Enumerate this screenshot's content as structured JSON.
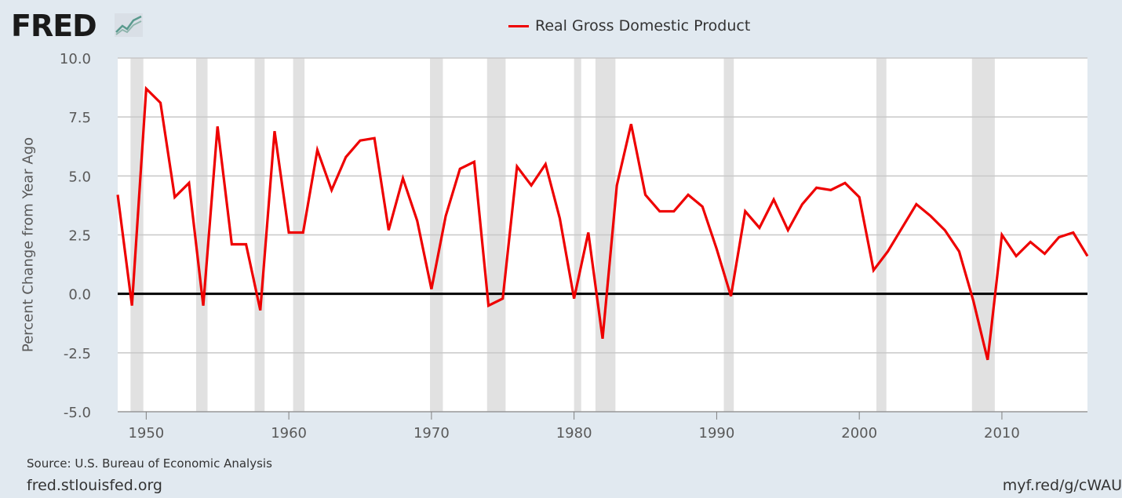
{
  "header": {
    "logo_text": "FRED",
    "logo_icon": "chart-line-icon"
  },
  "footer": {
    "source": "Source: U.S. Bureau of Economic Analysis",
    "site": "fred.stlouisfed.org",
    "short_url": "myf.red/g/cWAU"
  },
  "colors": {
    "background": "#e1e9f0",
    "plot_background": "#ffffff",
    "series": "#ee0000",
    "recession": "#e1e1e1",
    "gridline": "#c8c8c8",
    "zero_line": "#000000"
  },
  "chart_data": {
    "type": "line",
    "xlabel": "",
    "ylabel": "Percent Change from Year Ago",
    "xlim": [
      1948,
      2016
    ],
    "ylim": [
      -5,
      10
    ],
    "x_ticks": [
      1950,
      1960,
      1970,
      1980,
      1990,
      2000,
      2010
    ],
    "y_ticks": [
      "-5.0",
      "-2.5",
      "0.0",
      "2.5",
      "5.0",
      "7.5",
      "10.0"
    ],
    "y_tick_values": [
      -5,
      -2.5,
      0,
      2.5,
      5,
      7.5,
      10
    ],
    "grid": true,
    "legend": "top-center",
    "recessions": [
      [
        1948.9,
        1949.8
      ],
      [
        1953.5,
        1954.3
      ],
      [
        1957.6,
        1958.3
      ],
      [
        1960.3,
        1961.1
      ],
      [
        1969.9,
        1970.8
      ],
      [
        1973.9,
        1975.2
      ],
      [
        1980.0,
        1980.5
      ],
      [
        1981.5,
        1982.9
      ],
      [
        1990.5,
        1991.2
      ],
      [
        2001.2,
        2001.9
      ],
      [
        2007.9,
        2009.5
      ]
    ],
    "series": [
      {
        "name": "Real Gross Domestic Product",
        "x": [
          1948,
          1949,
          1950,
          1951,
          1952,
          1953,
          1954,
          1955,
          1956,
          1957,
          1958,
          1959,
          1960,
          1961,
          1962,
          1963,
          1964,
          1965,
          1966,
          1967,
          1968,
          1969,
          1970,
          1971,
          1972,
          1973,
          1974,
          1975,
          1976,
          1977,
          1978,
          1979,
          1980,
          1981,
          1982,
          1983,
          1984,
          1985,
          1986,
          1987,
          1988,
          1989,
          1990,
          1991,
          1992,
          1993,
          1994,
          1995,
          1996,
          1997,
          1998,
          1999,
          2000,
          2001,
          2002,
          2003,
          2004,
          2005,
          2006,
          2007,
          2008,
          2009,
          2010,
          2011,
          2012,
          2013,
          2014,
          2015,
          2016
        ],
        "values": [
          4.2,
          -0.5,
          8.7,
          8.1,
          4.1,
          4.7,
          -0.5,
          7.1,
          2.1,
          2.1,
          -0.7,
          6.9,
          2.6,
          2.6,
          6.1,
          4.4,
          5.8,
          6.5,
          6.6,
          2.7,
          4.9,
          3.1,
          0.2,
          3.3,
          5.3,
          5.6,
          -0.5,
          -0.2,
          5.4,
          4.6,
          5.5,
          3.2,
          -0.2,
          2.6,
          -1.9,
          4.6,
          7.2,
          4.2,
          3.5,
          3.5,
          4.2,
          3.7,
          1.9,
          -0.1,
          3.5,
          2.8,
          4.0,
          2.7,
          3.8,
          4.5,
          4.4,
          4.7,
          4.1,
          1.0,
          1.8,
          2.8,
          3.8,
          3.3,
          2.7,
          1.8,
          -0.3,
          -2.8,
          2.5,
          1.6,
          2.2,
          1.7,
          2.4,
          2.6,
          1.6
        ]
      }
    ]
  }
}
